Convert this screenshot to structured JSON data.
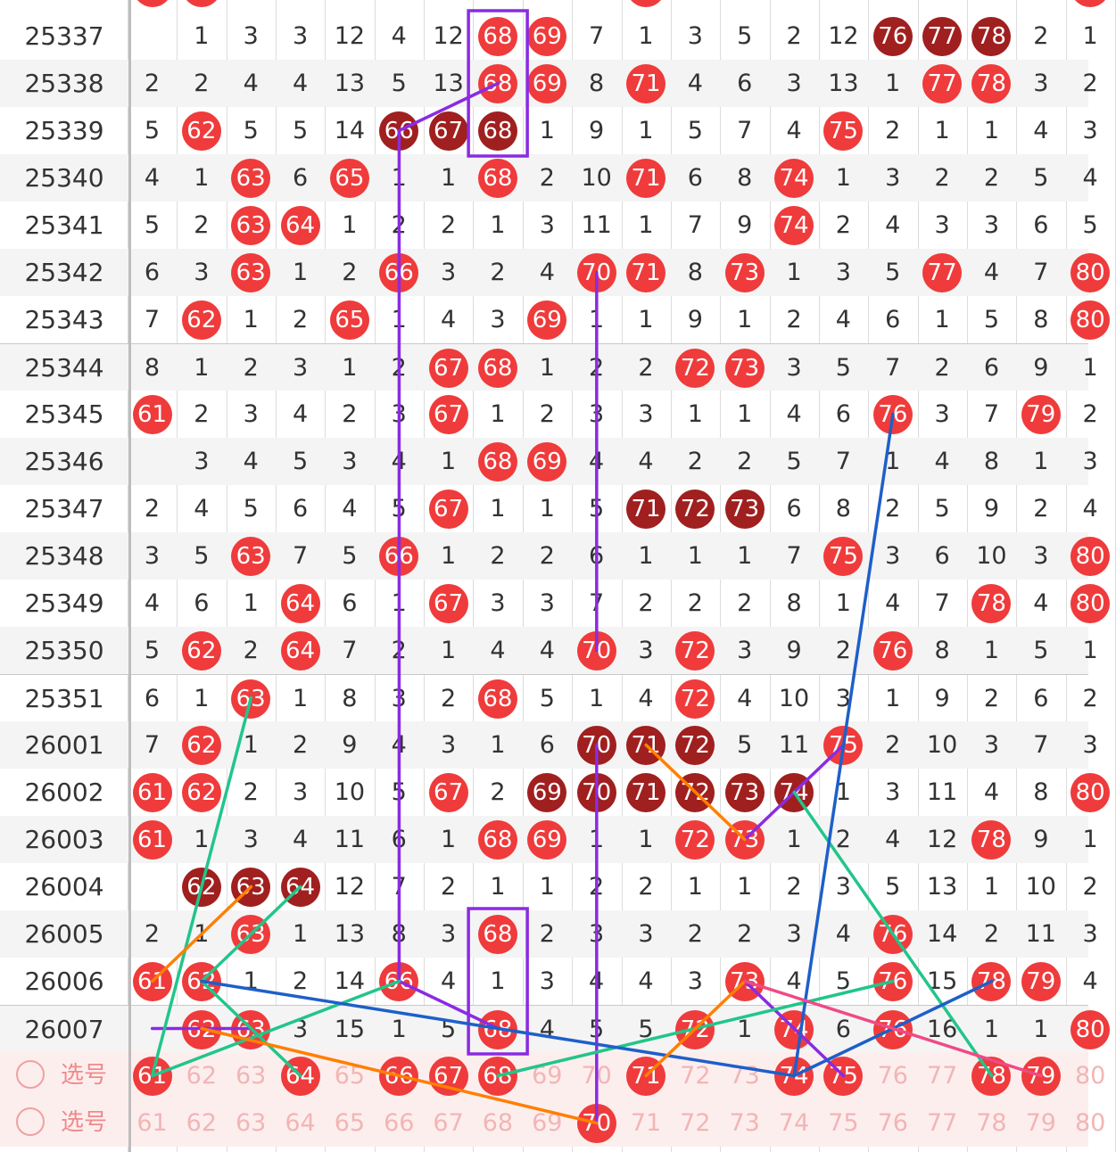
{
  "colors": {
    "hit": "#ef3b3b",
    "repeat": "#a01f1f",
    "purple": "#8a2be2",
    "green": "#22c58a",
    "blue": "#1e5fc9",
    "orange": "#ff7f00",
    "pink": "#ef4a86"
  },
  "columns": [
    "61",
    "62",
    "63",
    "64",
    "65",
    "66",
    "67",
    "68",
    "69",
    "70",
    "71",
    "72",
    "73",
    "74",
    "75",
    "76",
    "77",
    "78",
    "79",
    "80"
  ],
  "rows": [
    {
      "period": "25337",
      "cells": [
        "",
        "1",
        "3",
        "3",
        "12",
        "4",
        "12",
        "68",
        "69",
        "7",
        "1",
        "3",
        "5",
        "2",
        "12",
        "76",
        "77",
        "78",
        "2",
        "1"
      ],
      "hits": [
        7,
        8,
        15,
        16,
        17
      ],
      "reps": [
        15,
        16,
        17
      ]
    },
    {
      "period": "25338",
      "cells": [
        "2",
        "2",
        "4",
        "4",
        "13",
        "5",
        "13",
        "68",
        "69",
        "8",
        "71",
        "4",
        "6",
        "3",
        "13",
        "1",
        "77",
        "78",
        "3",
        "2"
      ],
      "hits": [
        7,
        8,
        10,
        16,
        17
      ],
      "reps": []
    },
    {
      "period": "25339",
      "cells": [
        "5",
        "62",
        "5",
        "5",
        "14",
        "66",
        "67",
        "68",
        "1",
        "9",
        "1",
        "5",
        "7",
        "4",
        "75",
        "2",
        "1",
        "1",
        "4",
        "3"
      ],
      "hits": [
        1,
        5,
        6,
        7,
        14
      ],
      "reps": [
        5,
        6,
        7
      ]
    },
    {
      "period": "25340",
      "cells": [
        "4",
        "1",
        "63",
        "6",
        "65",
        "1",
        "1",
        "68",
        "2",
        "10",
        "71",
        "6",
        "8",
        "74",
        "1",
        "3",
        "2",
        "2",
        "5",
        "4"
      ],
      "hits": [
        2,
        4,
        7,
        10,
        13
      ],
      "reps": []
    },
    {
      "period": "25341",
      "cells": [
        "5",
        "2",
        "63",
        "64",
        "1",
        "2",
        "2",
        "1",
        "3",
        "11",
        "1",
        "7",
        "9",
        "74",
        "2",
        "4",
        "3",
        "3",
        "6",
        "5"
      ],
      "hits": [
        2,
        3,
        13
      ],
      "reps": []
    },
    {
      "period": "25342",
      "cells": [
        "6",
        "3",
        "63",
        "1",
        "2",
        "66",
        "3",
        "2",
        "4",
        "70",
        "71",
        "8",
        "73",
        "1",
        "3",
        "5",
        "77",
        "4",
        "7",
        "80"
      ],
      "hits": [
        2,
        5,
        9,
        10,
        12,
        16,
        19
      ],
      "reps": []
    },
    {
      "period": "25343",
      "cells": [
        "7",
        "62",
        "1",
        "2",
        "65",
        "1",
        "4",
        "3",
        "69",
        "1",
        "1",
        "9",
        "1",
        "2",
        "4",
        "6",
        "1",
        "5",
        "8",
        "80"
      ],
      "hits": [
        1,
        4,
        8,
        19
      ],
      "reps": []
    },
    {
      "period": "25344",
      "cells": [
        "8",
        "1",
        "2",
        "3",
        "1",
        "2",
        "67",
        "68",
        "1",
        "2",
        "2",
        "72",
        "73",
        "3",
        "5",
        "7",
        "2",
        "6",
        "9",
        "1"
      ],
      "hits": [
        6,
        7,
        11,
        12
      ],
      "reps": []
    },
    {
      "period": "25345",
      "cells": [
        "61",
        "2",
        "3",
        "4",
        "2",
        "3",
        "67",
        "1",
        "2",
        "3",
        "3",
        "1",
        "1",
        "4",
        "6",
        "76",
        "3",
        "7",
        "79",
        "2"
      ],
      "hits": [
        0,
        6,
        15,
        18
      ],
      "reps": []
    },
    {
      "period": "25346",
      "cells": [
        "",
        "3",
        "4",
        "5",
        "3",
        "4",
        "1",
        "68",
        "69",
        "4",
        "4",
        "2",
        "2",
        "5",
        "7",
        "1",
        "4",
        "8",
        "1",
        "3"
      ],
      "hits": [
        7,
        8
      ],
      "reps": []
    },
    {
      "period": "25347",
      "cells": [
        "2",
        "4",
        "5",
        "6",
        "4",
        "5",
        "67",
        "1",
        "1",
        "5",
        "71",
        "72",
        "73",
        "6",
        "8",
        "2",
        "5",
        "9",
        "2",
        "4"
      ],
      "hits": [
        6,
        10,
        11,
        12
      ],
      "reps": [
        10,
        11,
        12
      ]
    },
    {
      "period": "25348",
      "cells": [
        "3",
        "5",
        "63",
        "7",
        "5",
        "66",
        "1",
        "2",
        "2",
        "6",
        "1",
        "1",
        "1",
        "7",
        "75",
        "3",
        "6",
        "10",
        "3",
        "80"
      ],
      "hits": [
        2,
        5,
        14,
        19
      ],
      "reps": []
    },
    {
      "period": "25349",
      "cells": [
        "4",
        "6",
        "1",
        "64",
        "6",
        "1",
        "67",
        "3",
        "3",
        "7",
        "2",
        "2",
        "2",
        "8",
        "1",
        "4",
        "7",
        "78",
        "4",
        "80"
      ],
      "hits": [
        3,
        6,
        17,
        19
      ],
      "reps": []
    },
    {
      "period": "25350",
      "cells": [
        "5",
        "62",
        "2",
        "64",
        "7",
        "2",
        "1",
        "4",
        "4",
        "70",
        "3",
        "72",
        "3",
        "9",
        "2",
        "76",
        "8",
        "1",
        "5",
        "1"
      ],
      "hits": [
        1,
        3,
        9,
        11,
        15
      ],
      "reps": []
    },
    {
      "period": "25351",
      "cells": [
        "6",
        "1",
        "63",
        "1",
        "8",
        "3",
        "2",
        "68",
        "5",
        "1",
        "4",
        "72",
        "4",
        "10",
        "3",
        "1",
        "9",
        "2",
        "6",
        "2"
      ],
      "hits": [
        2,
        7,
        11
      ],
      "reps": []
    },
    {
      "period": "26001",
      "cells": [
        "7",
        "62",
        "1",
        "2",
        "9",
        "4",
        "3",
        "1",
        "6",
        "70",
        "71",
        "72",
        "5",
        "11",
        "75",
        "2",
        "10",
        "3",
        "7",
        "3"
      ],
      "hits": [
        1,
        9,
        10,
        11,
        14
      ],
      "reps": [
        9,
        10,
        11
      ]
    },
    {
      "period": "26002",
      "cells": [
        "61",
        "62",
        "2",
        "3",
        "10",
        "5",
        "67",
        "2",
        "69",
        "70",
        "71",
        "72",
        "73",
        "74",
        "1",
        "3",
        "11",
        "4",
        "8",
        "80"
      ],
      "hits": [
        0,
        1,
        6,
        8,
        9,
        10,
        11,
        12,
        13,
        19
      ],
      "reps": [
        8,
        9,
        10,
        11,
        12,
        13
      ]
    },
    {
      "period": "26003",
      "cells": [
        "61",
        "1",
        "3",
        "4",
        "11",
        "6",
        "1",
        "68",
        "69",
        "1",
        "1",
        "72",
        "73",
        "1",
        "2",
        "4",
        "12",
        "78",
        "9",
        "1"
      ],
      "hits": [
        0,
        7,
        8,
        11,
        12,
        17
      ],
      "reps": []
    },
    {
      "period": "26004",
      "cells": [
        "",
        "62",
        "63",
        "64",
        "12",
        "7",
        "2",
        "1",
        "1",
        "2",
        "2",
        "1",
        "1",
        "2",
        "3",
        "5",
        "13",
        "1",
        "10",
        "2"
      ],
      "hits": [
        1,
        2,
        3
      ],
      "reps": [
        1,
        2,
        3
      ]
    },
    {
      "period": "26005",
      "cells": [
        "2",
        "1",
        "63",
        "1",
        "13",
        "8",
        "3",
        "68",
        "2",
        "3",
        "3",
        "2",
        "2",
        "3",
        "4",
        "76",
        "14",
        "2",
        "11",
        "3"
      ],
      "hits": [
        2,
        7,
        15
      ],
      "reps": []
    },
    {
      "period": "26006",
      "cells": [
        "61",
        "62",
        "1",
        "2",
        "14",
        "66",
        "4",
        "1",
        "3",
        "4",
        "4",
        "3",
        "73",
        "4",
        "5",
        "76",
        "15",
        "78",
        "79",
        "4"
      ],
      "hits": [
        0,
        1,
        5,
        12,
        15,
        17,
        18
      ],
      "reps": []
    },
    {
      "period": "26007",
      "cells": [
        "",
        "62",
        "63",
        "3",
        "15",
        "1",
        "5",
        "68",
        "4",
        "5",
        "5",
        "72",
        "1",
        "74",
        "6",
        "76",
        "16",
        "1",
        "1",
        "80"
      ],
      "hits": [
        1,
        2,
        7,
        11,
        13,
        15,
        19
      ],
      "reps": []
    }
  ],
  "select_rows": [
    {
      "label": "选号",
      "cells": [
        "61",
        "62",
        "63",
        "64",
        "65",
        "66",
        "67",
        "68",
        "69",
        "70",
        "71",
        "72",
        "73",
        "74",
        "75",
        "76",
        "77",
        "78",
        "79",
        "80"
      ],
      "picked": [
        0,
        3,
        5,
        6,
        7,
        10,
        13,
        14,
        17,
        18
      ]
    },
    {
      "label": "选号",
      "cells": [
        "61",
        "62",
        "63",
        "64",
        "65",
        "66",
        "67",
        "68",
        "69",
        "70",
        "71",
        "72",
        "73",
        "74",
        "75",
        "76",
        "77",
        "78",
        "79",
        "80"
      ],
      "picked": [
        9
      ]
    }
  ]
}
